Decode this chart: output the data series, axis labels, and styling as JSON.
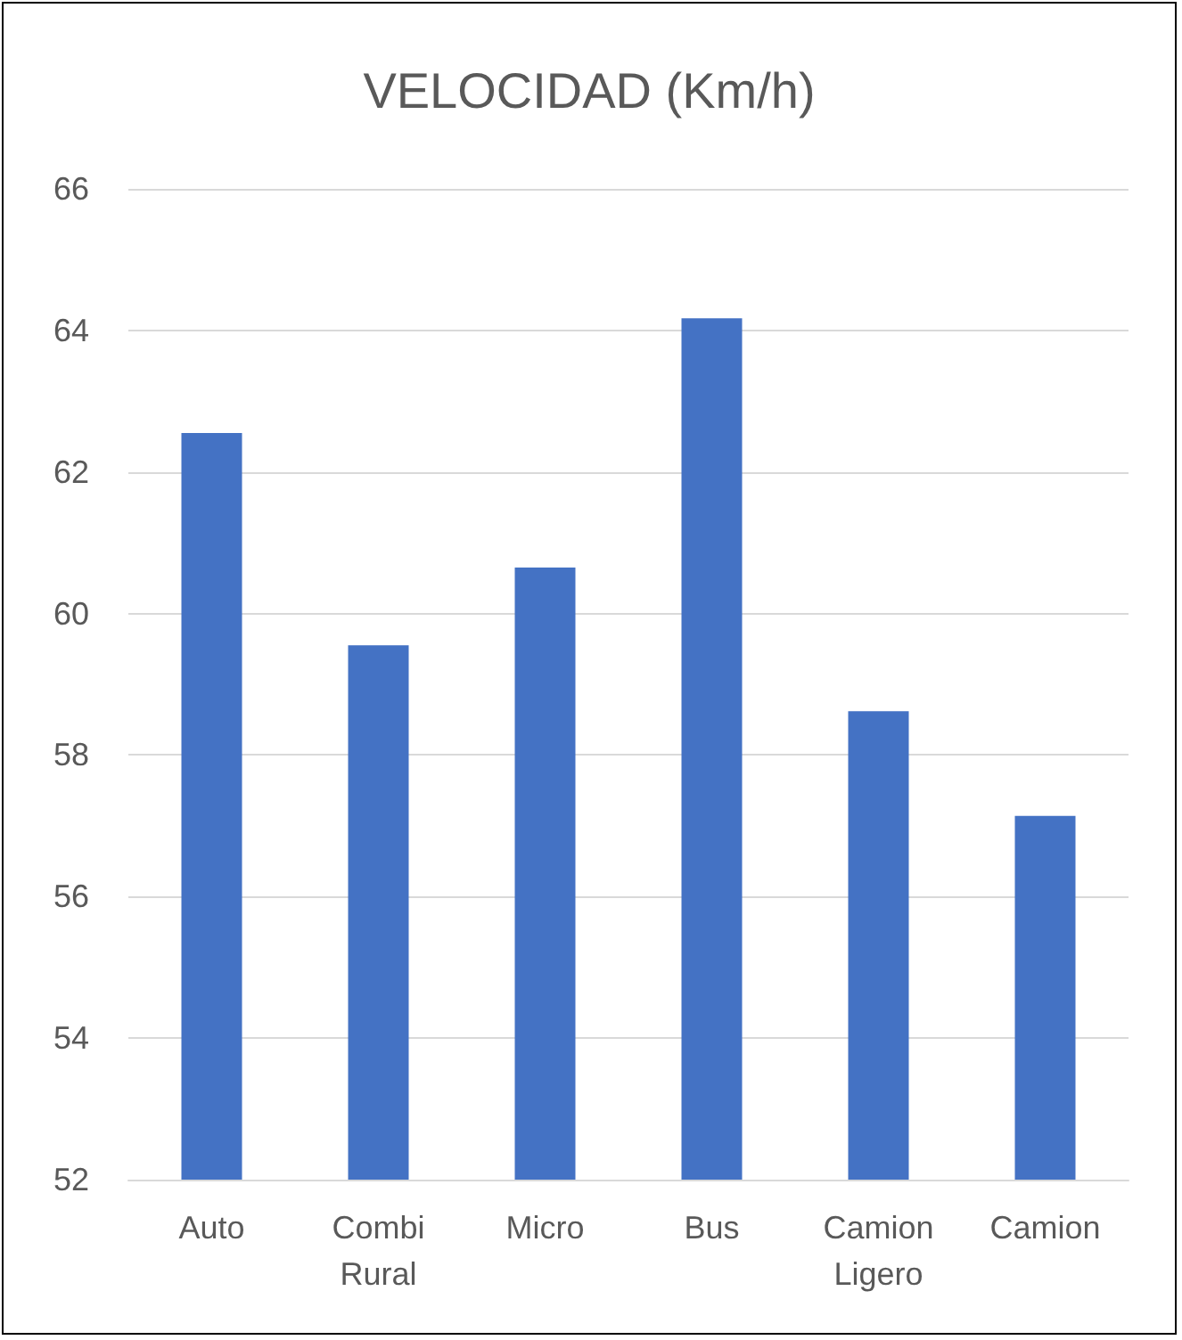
{
  "chart_data": {
    "type": "bar",
    "title": "VELOCIDAD (Km/h)",
    "categories": [
      "Auto",
      "Combi Rural",
      "Micro",
      "Bus",
      "Camion Ligero",
      "Camion"
    ],
    "values": [
      62.55,
      59.55,
      60.65,
      64.17,
      58.62,
      57.14
    ],
    "color": "#4472c4",
    "ylim": [
      52,
      66
    ],
    "yticks": [
      52,
      54,
      56,
      58,
      60,
      62,
      64,
      66
    ],
    "grid": "y"
  }
}
